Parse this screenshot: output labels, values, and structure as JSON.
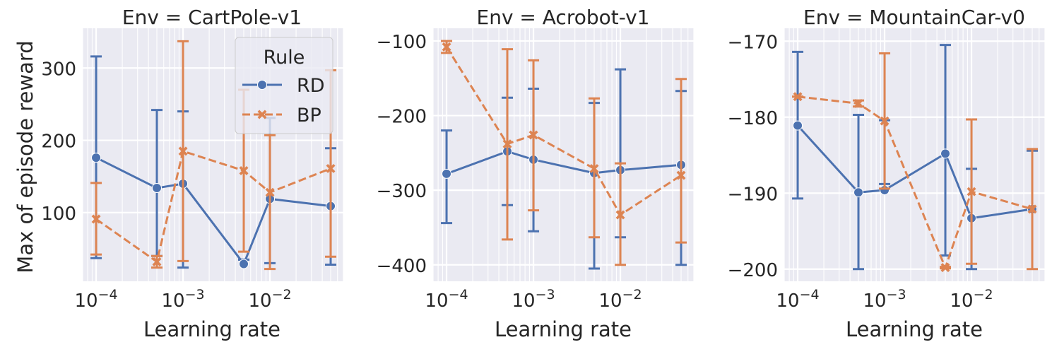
{
  "figure": {
    "ylabel": "Max of episode reward",
    "legend": {
      "title": "Rule",
      "placement": "top-right",
      "in_panel": 0
    }
  },
  "colors": {
    "RD": "#4C72B0",
    "BP": "#DD8452",
    "plot_bg": "#EAEAF2",
    "grid": "#FFFFFF"
  },
  "chart_data": [
    {
      "type": "line",
      "title": "Env = CartPole-v1",
      "xlabel": "Learning rate",
      "ylabel": "Max of episode reward",
      "xscale": "log",
      "xlim": [
        7e-05,
        0.07
      ],
      "ylim": [
        5,
        355
      ],
      "yticks": [
        100,
        200,
        300
      ],
      "ytick_labels": [
        "100",
        "200",
        "300"
      ],
      "xticks": [
        0.0001,
        0.001,
        0.01
      ],
      "xtick_labels": [
        {
          "base": "10",
          "exp": "−4"
        },
        {
          "base": "10",
          "exp": "−3"
        },
        {
          "base": "10",
          "exp": "−2"
        }
      ],
      "grid": true,
      "legend": "top-right",
      "series": [
        {
          "name": "RD",
          "marker": "circle",
          "linestyle": "solid",
          "x": [
            0.0001,
            0.0005,
            0.001,
            0.005,
            0.01,
            0.05
          ],
          "y": [
            176,
            134,
            140,
            29,
            119,
            109
          ],
          "err_low": [
            37,
            40,
            24,
            35,
            30,
            28
          ],
          "err_high": [
            316,
            242,
            240,
            35,
            231,
            189
          ]
        },
        {
          "name": "BP",
          "marker": "x",
          "linestyle": "dashed",
          "x": [
            0.0001,
            0.0005,
            0.001,
            0.005,
            0.01,
            0.05
          ],
          "y": [
            91,
            32,
            185,
            158,
            128,
            161
          ],
          "err_low": [
            42,
            24,
            33,
            46,
            22,
            39
          ],
          "err_high": [
            141,
            40,
            337,
            270,
            207,
            297
          ]
        }
      ]
    },
    {
      "type": "line",
      "title": "Env = Acrobot-v1",
      "xlabel": "Learning rate",
      "ylabel": "",
      "xscale": "log",
      "xlim": [
        7e-05,
        0.07
      ],
      "ylim": [
        -422,
        -83
      ],
      "yticks": [
        -400,
        -300,
        -200,
        -100
      ],
      "ytick_labels": [
        "−400",
        "−300",
        "−200",
        "−100"
      ],
      "xticks": [
        0.0001,
        0.001,
        0.01
      ],
      "xtick_labels": [
        {
          "base": "10",
          "exp": "−4"
        },
        {
          "base": "10",
          "exp": "−3"
        },
        {
          "base": "10",
          "exp": "−2"
        }
      ],
      "grid": true,
      "series": [
        {
          "name": "RD",
          "marker": "circle",
          "linestyle": "solid",
          "x": [
            0.0001,
            0.0005,
            0.001,
            0.005,
            0.01,
            0.05
          ],
          "y": [
            -278,
            -248,
            -259,
            -277,
            -273,
            -266
          ],
          "err_low": [
            -344,
            -320,
            -355,
            -405,
            -363,
            -400
          ],
          "err_high": [
            -220,
            -176,
            -164,
            -183,
            -138,
            -167
          ]
        },
        {
          "name": "BP",
          "marker": "x",
          "linestyle": "dashed",
          "x": [
            0.0001,
            0.0005,
            0.001,
            0.005,
            0.01,
            0.05
          ],
          "y": [
            -108,
            -238,
            -226,
            -271,
            -333,
            -280
          ],
          "err_low": [
            -116,
            -366,
            -327,
            -363,
            -400,
            -370
          ],
          "err_high": [
            -100,
            -111,
            -126,
            -177,
            -264,
            -151
          ]
        }
      ]
    },
    {
      "type": "line",
      "title": "Env = MountainCar-v0",
      "xlabel": "Learning rate",
      "ylabel": "",
      "xscale": "log",
      "xlim": [
        7e-05,
        0.07
      ],
      "ylim": [
        -201.6,
        -168.3
      ],
      "yticks": [
        -200,
        -190,
        -180,
        -170
      ],
      "ytick_labels": [
        "−200",
        "−190",
        "−180",
        "−170"
      ],
      "xticks": [
        0.0001,
        0.001,
        0.01
      ],
      "xtick_labels": [
        {
          "base": "10",
          "exp": "−4"
        },
        {
          "base": "10",
          "exp": "−3"
        },
        {
          "base": "10",
          "exp": "−2"
        }
      ],
      "grid": true,
      "series": [
        {
          "name": "RD",
          "marker": "circle",
          "linestyle": "solid",
          "x": [
            0.0001,
            0.0005,
            0.001,
            0.005,
            0.01,
            0.05
          ],
          "y": [
            -181.1,
            -189.9,
            -189.6,
            -184.8,
            -193.3,
            -192.1
          ],
          "err_low": [
            -190.7,
            -200.0,
            -188.8,
            -198.2,
            -200.0,
            -184.4
          ],
          "err_high": [
            -171.4,
            -179.7,
            -180.4,
            -170.5,
            -186.8,
            -184.4
          ]
        },
        {
          "name": "BP",
          "marker": "x",
          "linestyle": "dashed",
          "x": [
            0.0001,
            0.0005,
            0.001,
            0.005,
            0.01,
            0.05
          ],
          "y": [
            -177.3,
            -178.2,
            -180.5,
            -199.8,
            -189.8,
            -192.1
          ],
          "err_low": [
            -177.3,
            -178.6,
            -189.4,
            -199.9,
            -199.3,
            -200.0
          ],
          "err_high": [
            -177.3,
            -177.8,
            -171.6,
            -199.7,
            -180.3,
            -184.2
          ]
        }
      ]
    }
  ]
}
